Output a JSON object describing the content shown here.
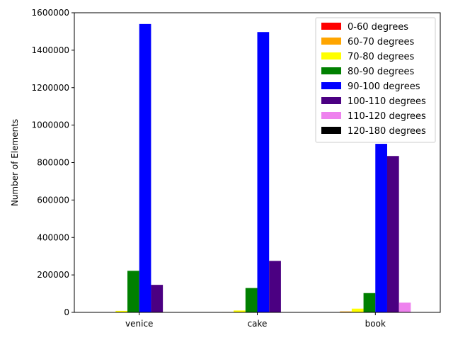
{
  "chart_data": {
    "type": "bar",
    "title": "",
    "xlabel": "",
    "ylabel": "Number of Elements",
    "ylim": [
      0,
      1600000
    ],
    "yticks": [
      0,
      200000,
      400000,
      600000,
      800000,
      1000000,
      1200000,
      1400000,
      1600000
    ],
    "categories": [
      "venice",
      "cake",
      "book"
    ],
    "legend_position": "top-right",
    "grid": false,
    "series": [
      {
        "name": "0-60 degrees",
        "color": "#ff0000",
        "values": [
          200,
          300,
          1500
        ]
      },
      {
        "name": "60-70 degrees",
        "color": "#ffa500",
        "values": [
          1500,
          2000,
          5000
        ]
      },
      {
        "name": "70-80 degrees",
        "color": "#ffff00",
        "values": [
          8000,
          10000,
          20000
        ]
      },
      {
        "name": "80-90 degrees",
        "color": "#008000",
        "values": [
          222000,
          130000,
          103000
        ]
      },
      {
        "name": "90-100 degrees",
        "color": "#0000ff",
        "values": [
          1540000,
          1497000,
          900000
        ]
      },
      {
        "name": "100-110 degrees",
        "color": "#4b0082",
        "values": [
          147000,
          275000,
          835000
        ]
      },
      {
        "name": "110-120 degrees",
        "color": "#ee82ee",
        "values": [
          1000,
          1500,
          52000
        ]
      },
      {
        "name": "120-180 degrees",
        "color": "#000000",
        "values": [
          0,
          0,
          500
        ]
      }
    ]
  }
}
